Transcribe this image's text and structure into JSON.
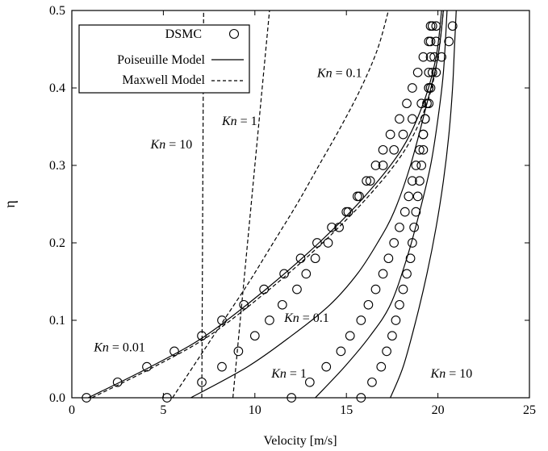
{
  "chart_data": {
    "type": "line",
    "xlabel": "Velocity [m/s]",
    "ylabel": "η",
    "xlim": [
      0,
      25
    ],
    "ylim": [
      0,
      0.5
    ],
    "xticks": [
      0,
      5,
      10,
      15,
      20,
      25
    ],
    "yticks": [
      0.0,
      0.1,
      0.2,
      0.3,
      0.4,
      0.5
    ],
    "xtick_labels": [
      "0",
      "5",
      "10",
      "15",
      "20",
      "25"
    ],
    "ytick_labels": [
      "0.0",
      "0.1",
      "0.2",
      "0.3",
      "0.4",
      "0.5"
    ],
    "grid": false,
    "legend": {
      "placement": "top-left",
      "entries": [
        {
          "label": "DSMC",
          "style": "circle"
        },
        {
          "label": "Poiseuille Model",
          "style": "solid"
        },
        {
          "label": "Maxwell Model",
          "style": "dashed"
        }
      ]
    },
    "annotations": [
      {
        "kn_prefix": "Kn",
        "kn_value": "= 0.01",
        "x": 1.2,
        "y": 0.06
      },
      {
        "kn_prefix": "Kn",
        "kn_value": "= 0.1",
        "x": 11.6,
        "y": 0.098
      },
      {
        "kn_prefix": "Kn",
        "kn_value": "= 1",
        "x": 10.9,
        "y": 0.026
      },
      {
        "kn_prefix": "Kn",
        "kn_value": "= 10",
        "x": 19.6,
        "y": 0.026
      },
      {
        "kn_prefix": "Kn",
        "kn_value": "= 0.1",
        "x": 13.4,
        "y": 0.414
      },
      {
        "kn_prefix": "Kn",
        "kn_value": "= 1",
        "x": 8.2,
        "y": 0.352
      },
      {
        "kn_prefix": "Kn",
        "kn_value": "= 10",
        "x": 4.3,
        "y": 0.322
      }
    ],
    "series": [
      {
        "name": "DSMC",
        "kn": "0.01",
        "style": "circle",
        "x": [
          0.8,
          2.5,
          4.1,
          5.6,
          7.1,
          8.2,
          9.4,
          10.5,
          11.6,
          12.5,
          13.4,
          14.2,
          15.0,
          15.7,
          16.3,
          17.0,
          17.6,
          18.1,
          18.6,
          19.1,
          19.5,
          19.9,
          20.2,
          20.6,
          20.8
        ],
        "y": [
          0.0,
          0.02,
          0.04,
          0.06,
          0.08,
          0.1,
          0.12,
          0.14,
          0.16,
          0.18,
          0.2,
          0.22,
          0.24,
          0.26,
          0.28,
          0.3,
          0.32,
          0.34,
          0.36,
          0.38,
          0.4,
          0.42,
          0.44,
          0.46,
          0.48
        ]
      },
      {
        "name": "DSMC",
        "kn": "0.1",
        "style": "circle",
        "x": [
          5.2,
          7.1,
          8.2,
          9.1,
          10.0,
          10.8,
          11.5,
          12.3,
          12.8,
          13.3,
          14.0,
          14.6,
          15.1,
          15.6,
          16.1,
          16.6,
          17.0,
          17.4,
          17.9,
          18.3,
          18.6,
          18.9,
          19.2,
          19.5,
          19.6
        ],
        "y": [
          0.0,
          0.02,
          0.04,
          0.06,
          0.08,
          0.1,
          0.12,
          0.14,
          0.16,
          0.18,
          0.2,
          0.22,
          0.24,
          0.26,
          0.28,
          0.3,
          0.32,
          0.34,
          0.36,
          0.38,
          0.4,
          0.42,
          0.44,
          0.46,
          0.48
        ]
      },
      {
        "name": "DSMC",
        "kn": "1",
        "style": "circle",
        "x": [
          12.0,
          13.0,
          13.9,
          14.7,
          15.2,
          15.8,
          16.2,
          16.6,
          17.0,
          17.3,
          17.6,
          17.9,
          18.2,
          18.4,
          18.6,
          18.8,
          19.0,
          19.2,
          19.3,
          19.5,
          19.6,
          19.7,
          19.8,
          19.9,
          19.9
        ],
        "y": [
          0.0,
          0.02,
          0.04,
          0.06,
          0.08,
          0.1,
          0.12,
          0.14,
          0.16,
          0.18,
          0.2,
          0.22,
          0.24,
          0.26,
          0.28,
          0.3,
          0.32,
          0.34,
          0.36,
          0.38,
          0.4,
          0.42,
          0.44,
          0.46,
          0.48
        ]
      },
      {
        "name": "DSMC",
        "kn": "10",
        "style": "circle",
        "x": [
          15.8,
          16.4,
          16.9,
          17.2,
          17.5,
          17.7,
          17.9,
          18.1,
          18.3,
          18.5,
          18.6,
          18.7,
          18.8,
          18.9,
          19.0,
          19.1,
          19.2,
          19.2,
          19.3,
          19.4,
          19.5,
          19.5,
          19.6,
          19.6,
          19.7
        ],
        "y": [
          0.0,
          0.02,
          0.04,
          0.06,
          0.08,
          0.1,
          0.12,
          0.14,
          0.16,
          0.18,
          0.2,
          0.22,
          0.24,
          0.26,
          0.28,
          0.3,
          0.32,
          0.34,
          0.36,
          0.38,
          0.4,
          0.42,
          0.44,
          0.46,
          0.48
        ]
      },
      {
        "name": "Poiseuille Model",
        "kn": "0.01",
        "style": "solid",
        "x": [
          0.9,
          4.3,
          7.3,
          10.6,
          13.5,
          16.0,
          18.0,
          19.2,
          19.9,
          20.2
        ],
        "y": [
          0.0,
          0.04,
          0.08,
          0.14,
          0.2,
          0.26,
          0.32,
          0.38,
          0.44,
          0.5
        ]
      },
      {
        "name": "Poiseuille Model",
        "kn": "0.1",
        "style": "solid",
        "x": [
          6.5,
          9.6,
          12.0,
          14.1,
          15.6,
          16.7,
          17.6,
          18.5,
          19.4,
          20.0,
          20.3
        ],
        "y": [
          0.0,
          0.04,
          0.08,
          0.12,
          0.16,
          0.2,
          0.24,
          0.3,
          0.38,
          0.44,
          0.5
        ]
      },
      {
        "name": "Poiseuille Model",
        "kn": "1",
        "style": "solid",
        "x": [
          13.3,
          14.9,
          16.3,
          17.4,
          18.3,
          19.0,
          19.6,
          20.0,
          20.3,
          20.5
        ],
        "y": [
          0.0,
          0.04,
          0.08,
          0.12,
          0.18,
          0.24,
          0.3,
          0.36,
          0.42,
          0.5
        ]
      },
      {
        "name": "Poiseuille Model",
        "kn": "10",
        "style": "solid",
        "x": [
          17.4,
          18.1,
          18.8,
          19.4,
          19.9,
          20.3,
          20.6,
          20.8,
          20.9,
          21.0
        ],
        "y": [
          0.0,
          0.04,
          0.1,
          0.16,
          0.22,
          0.28,
          0.34,
          0.4,
          0.45,
          0.5
        ]
      },
      {
        "name": "Maxwell Model",
        "kn": "0.01",
        "style": "dashed",
        "x": [
          1.1,
          4.5,
          7.5,
          10.8,
          13.7,
          16.2,
          18.2,
          19.4,
          20.0,
          20.3
        ],
        "y": [
          0.0,
          0.04,
          0.08,
          0.14,
          0.2,
          0.26,
          0.32,
          0.38,
          0.44,
          0.5
        ]
      },
      {
        "name": "Maxwell Model",
        "kn": "0.1",
        "style": "dashed",
        "x": [
          5.5,
          6.9,
          8.3,
          9.7,
          11.0,
          12.3,
          13.5,
          14.7,
          15.8,
          16.7,
          17.3
        ],
        "y": [
          0.0,
          0.05,
          0.1,
          0.15,
          0.2,
          0.25,
          0.3,
          0.35,
          0.4,
          0.45,
          0.5
        ]
      },
      {
        "name": "Maxwell Model",
        "kn": "1",
        "style": "dashed",
        "x": [
          8.8,
          9.3,
          9.8,
          10.3,
          10.8
        ],
        "y": [
          0.0,
          0.125,
          0.25,
          0.375,
          0.5
        ]
      },
      {
        "name": "Maxwell Model",
        "kn": "10",
        "style": "dashed",
        "x": [
          7.1,
          7.2
        ],
        "y": [
          0.0,
          0.5
        ]
      }
    ]
  }
}
